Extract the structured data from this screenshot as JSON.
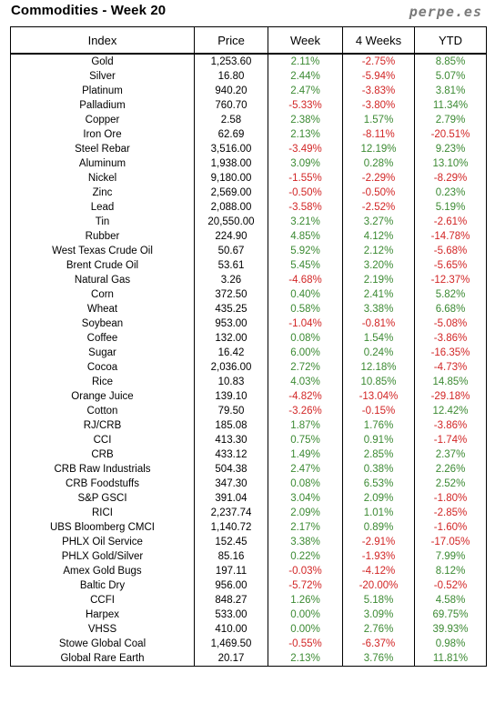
{
  "header": {
    "title": "Commodities - Week 20",
    "brand": "perpe.es"
  },
  "table": {
    "columns": [
      "Index",
      "Price",
      "Week",
      "4 Weeks",
      "YTD"
    ],
    "colors": {
      "positive": "#3c8a33",
      "negative": "#d22626"
    },
    "rows": [
      [
        "Gold",
        "1,253.60",
        "2.11%",
        "-2.75%",
        "8.85%"
      ],
      [
        "Silver",
        "16.80",
        "2.44%",
        "-5.94%",
        "5.07%"
      ],
      [
        "Platinum",
        "940.20",
        "2.47%",
        "-3.83%",
        "3.81%"
      ],
      [
        "Palladium",
        "760.70",
        "-5.33%",
        "-3.80%",
        "11.34%"
      ],
      [
        "Copper",
        "2.58",
        "2.38%",
        "1.57%",
        "2.79%"
      ],
      [
        "Iron Ore",
        "62.69",
        "2.13%",
        "-8.11%",
        "-20.51%"
      ],
      [
        "Steel Rebar",
        "3,516.00",
        "-3.49%",
        "12.19%",
        "9.23%"
      ],
      [
        "Aluminum",
        "1,938.00",
        "3.09%",
        "0.28%",
        "13.10%"
      ],
      [
        "Nickel",
        "9,180.00",
        "-1.55%",
        "-2.29%",
        "-8.29%"
      ],
      [
        "Zinc",
        "2,569.00",
        "-0.50%",
        "-0.50%",
        "0.23%"
      ],
      [
        "Lead",
        "2,088.00",
        "-3.58%",
        "-2.52%",
        "5.19%"
      ],
      [
        "Tin",
        "20,550.00",
        "3.21%",
        "3.27%",
        "-2.61%"
      ],
      [
        "Rubber",
        "224.90",
        "4.85%",
        "4.12%",
        "-14.78%"
      ],
      [
        "West Texas Crude Oil",
        "50.67",
        "5.92%",
        "2.12%",
        "-5.68%"
      ],
      [
        "Brent Crude Oil",
        "53.61",
        "5.45%",
        "3.20%",
        "-5.65%"
      ],
      [
        "Natural Gas",
        "3.26",
        "-4.68%",
        "2.19%",
        "-12.37%"
      ],
      [
        "Corn",
        "372.50",
        "0.40%",
        "2.41%",
        "5.82%"
      ],
      [
        "Wheat",
        "435.25",
        "0.58%",
        "3.38%",
        "6.68%"
      ],
      [
        "Soybean",
        "953.00",
        "-1.04%",
        "-0.81%",
        "-5.08%"
      ],
      [
        "Coffee",
        "132.00",
        "0.08%",
        "1.54%",
        "-3.86%"
      ],
      [
        "Sugar",
        "16.42",
        "6.00%",
        "0.24%",
        "-16.35%"
      ],
      [
        "Cocoa",
        "2,036.00",
        "2.72%",
        "12.18%",
        "-4.73%"
      ],
      [
        "Rice",
        "10.83",
        "4.03%",
        "10.85%",
        "14.85%"
      ],
      [
        "Orange Juice",
        "139.10",
        "-4.82%",
        "-13.04%",
        "-29.18%"
      ],
      [
        "Cotton",
        "79.50",
        "-3.26%",
        "-0.15%",
        "12.42%"
      ],
      [
        "RJ/CRB",
        "185.08",
        "1.87%",
        "1.76%",
        "-3.86%"
      ],
      [
        "CCI",
        "413.30",
        "0.75%",
        "0.91%",
        "-1.74%"
      ],
      [
        "CRB",
        "433.12",
        "1.49%",
        "2.85%",
        "2.37%"
      ],
      [
        "CRB Raw Industrials",
        "504.38",
        "2.47%",
        "0.38%",
        "2.26%"
      ],
      [
        "CRB Foodstuffs",
        "347.30",
        "0.08%",
        "6.53%",
        "2.52%"
      ],
      [
        "S&P GSCI",
        "391.04",
        "3.04%",
        "2.09%",
        "-1.80%"
      ],
      [
        "RICI",
        "2,237.74",
        "2.09%",
        "1.01%",
        "-2.85%"
      ],
      [
        "UBS Bloomberg CMCI",
        "1,140.72",
        "2.17%",
        "0.89%",
        "-1.60%"
      ],
      [
        "PHLX Oil Service",
        "152.45",
        "3.38%",
        "-2.91%",
        "-17.05%"
      ],
      [
        "PHLX Gold/Silver",
        "85.16",
        "0.22%",
        "-1.93%",
        "7.99%"
      ],
      [
        "Amex Gold Bugs",
        "197.11",
        "-0.03%",
        "-4.12%",
        "8.12%"
      ],
      [
        "Baltic Dry",
        "956.00",
        "-5.72%",
        "-20.00%",
        "-0.52%"
      ],
      [
        "CCFI",
        "848.27",
        "1.26%",
        "5.18%",
        "4.58%"
      ],
      [
        "Harpex",
        "533.00",
        "0.00%",
        "3.09%",
        "69.75%"
      ],
      [
        "VHSS",
        "410.00",
        "0.00%",
        "2.76%",
        "39.93%"
      ],
      [
        "Stowe Global Coal",
        "1,469.50",
        "-0.55%",
        "-6.37%",
        "0.98%"
      ],
      [
        "Global Rare Earth",
        "20.17",
        "2.13%",
        "3.76%",
        "11.81%"
      ]
    ]
  }
}
